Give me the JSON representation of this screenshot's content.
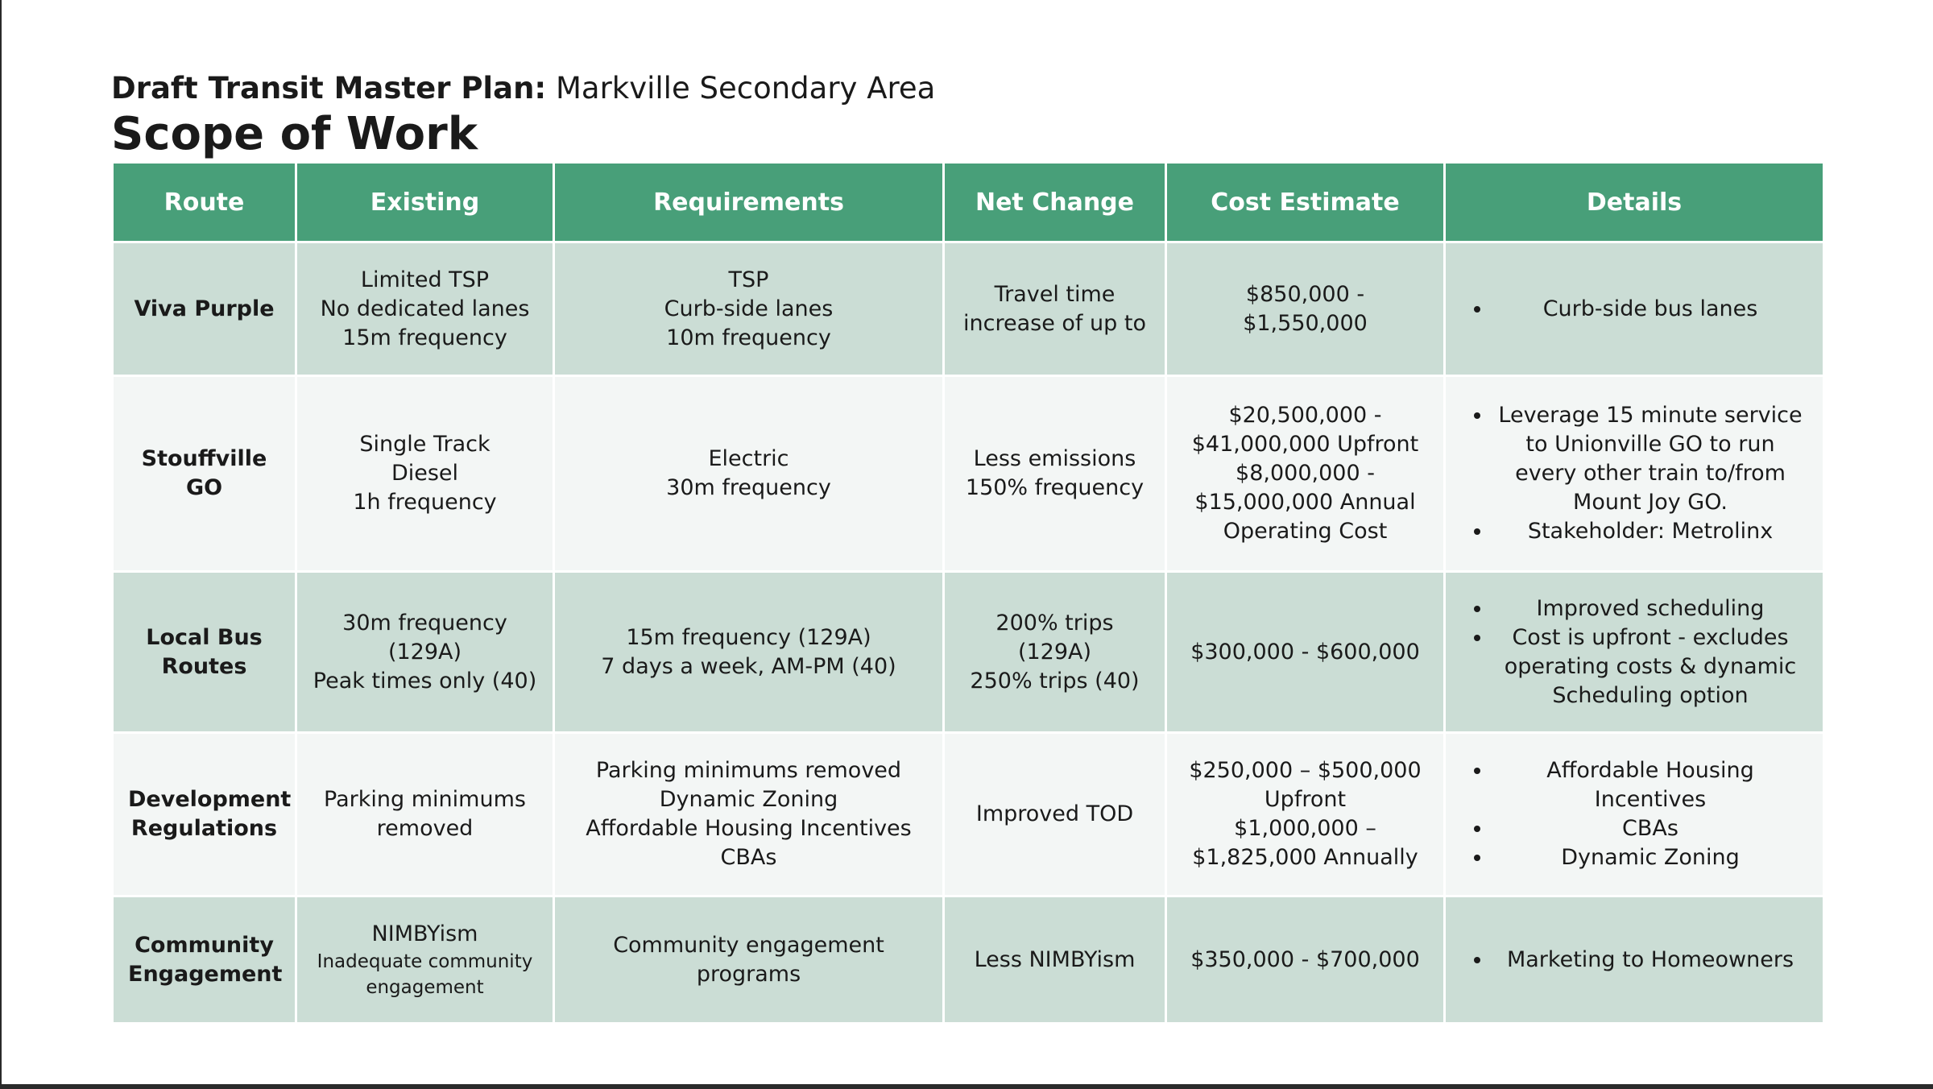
{
  "header": {
    "subtitle_bold": "Draft Transit Master Plan:",
    "subtitle_rest": " Markville Secondary Area",
    "title": "Scope of Work"
  },
  "table": {
    "columns": [
      "Route",
      "Existing",
      "Requirements",
      "Net Change",
      "Cost Estimate",
      "Details"
    ],
    "rows": [
      {
        "route": [
          "Viva Purple"
        ],
        "existing": [
          "Limited TSP",
          "No dedicated lanes",
          "15m frequency"
        ],
        "requirements": [
          "TSP",
          "Curb-side lanes",
          "10m frequency"
        ],
        "net_change": [
          "Travel time",
          "increase of up to"
        ],
        "cost": [
          "$850,000 -",
          "$1,550,000"
        ],
        "details": [
          "Curb-side bus lanes"
        ]
      },
      {
        "route": [
          "Stouffville",
          "GO"
        ],
        "existing": [
          "Single Track",
          "Diesel",
          "1h frequency"
        ],
        "requirements": [
          "Electric",
          "30m frequency"
        ],
        "net_change": [
          "Less emissions",
          "150% frequency"
        ],
        "cost": [
          "$20,500,000 -",
          "$41,000,000 Upfront",
          "$8,000,000 -",
          "$15,000,000 Annual",
          "Operating Cost"
        ],
        "details": [
          "Leverage 15 minute service to Unionville GO to run every other train to/from Mount Joy GO.",
          "Stakeholder: Metrolinx"
        ]
      },
      {
        "route": [
          "Local Bus",
          "Routes"
        ],
        "existing": [
          "30m frequency",
          "(129A)",
          "Peak times only (40)"
        ],
        "requirements": [
          "15m frequency (129A)",
          "7 days a week, AM-PM (40)"
        ],
        "net_change": [
          "200% trips (129A)",
          "250% trips (40)"
        ],
        "cost": [
          "$300,000 - $600,000"
        ],
        "details": [
          "Improved scheduling",
          "Cost is upfront - excludes operating costs & dynamic Scheduling option"
        ]
      },
      {
        "route": [
          "Development",
          "Regulations"
        ],
        "existing": [
          "Parking minimums",
          "removed"
        ],
        "requirements": [
          "Parking minimums removed",
          "Dynamic Zoning",
          "Affordable Housing Incentives",
          "CBAs"
        ],
        "net_change": [
          "Improved TOD"
        ],
        "cost": [
          "$250,000 – $500,000",
          "Upfront",
          "$1,000,000 –",
          "$1,825,000 Annually"
        ],
        "details": [
          "Affordable Housing Incentives",
          "CBAs",
          "Dynamic Zoning"
        ]
      },
      {
        "route": [
          "Community",
          "Engagement"
        ],
        "existing": [
          "NIMBYism"
        ],
        "existing_small": [
          "Inadequate community",
          "engagement"
        ],
        "requirements": [
          "Community engagement",
          "programs"
        ],
        "net_change": [
          "Less NIMBYism"
        ],
        "cost": [
          "$350,000 - $700,000"
        ],
        "details": [
          "Marketing to Homeowners"
        ]
      }
    ]
  }
}
